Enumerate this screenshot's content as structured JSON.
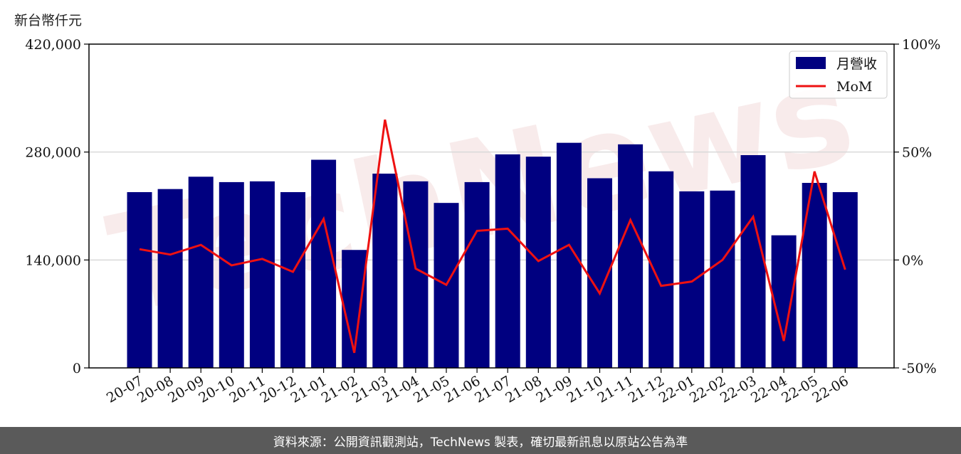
{
  "chart_data": {
    "type": "bar",
    "unit_label": "新台幣仟元",
    "categories": [
      "20-07",
      "20-08",
      "20-09",
      "20-10",
      "20-11",
      "20-12",
      "21-01",
      "21-02",
      "21-03",
      "21-04",
      "21-05",
      "21-06",
      "21-07",
      "21-08",
      "21-09",
      "21-10",
      "21-11",
      "21-12",
      "22-01",
      "22-02",
      "22-03",
      "22-04",
      "22-05",
      "22-06"
    ],
    "series": [
      {
        "name": "月營收",
        "axis": "left",
        "kind": "bar",
        "color": "#000080",
        "values": [
          228000,
          232000,
          248000,
          241000,
          242000,
          228000,
          270000,
          153000,
          252000,
          242000,
          214000,
          241000,
          277000,
          274000,
          292000,
          246000,
          290000,
          255000,
          229000,
          230000,
          276000,
          172000,
          240000,
          228000
        ]
      },
      {
        "name": "MoM",
        "axis": "right",
        "kind": "line",
        "color": "#ee1111",
        "values": [
          5,
          2.5,
          7,
          -2.5,
          0.5,
          -5.5,
          19,
          -43,
          65,
          -4,
          -11.5,
          13.5,
          14.5,
          -0.5,
          7,
          -15.5,
          18.5,
          -12,
          -10,
          0,
          20,
          -37.5,
          41,
          -4.5
        ]
      }
    ],
    "left_axis": {
      "ylim": [
        0,
        420000
      ],
      "ticks": [
        "0",
        "140,000",
        "280,000",
        "420,000"
      ]
    },
    "right_axis": {
      "ylim": [
        -50,
        100
      ],
      "ticks": [
        "-50%",
        "0%",
        "50%",
        "100%"
      ]
    },
    "grid": "horizontal",
    "legend": "top-right",
    "watermark": "TechNews"
  },
  "footer": {
    "source": "資料來源：公開資訊觀測站，TechNews 製表，確切最新訊息以原站公告為準"
  }
}
